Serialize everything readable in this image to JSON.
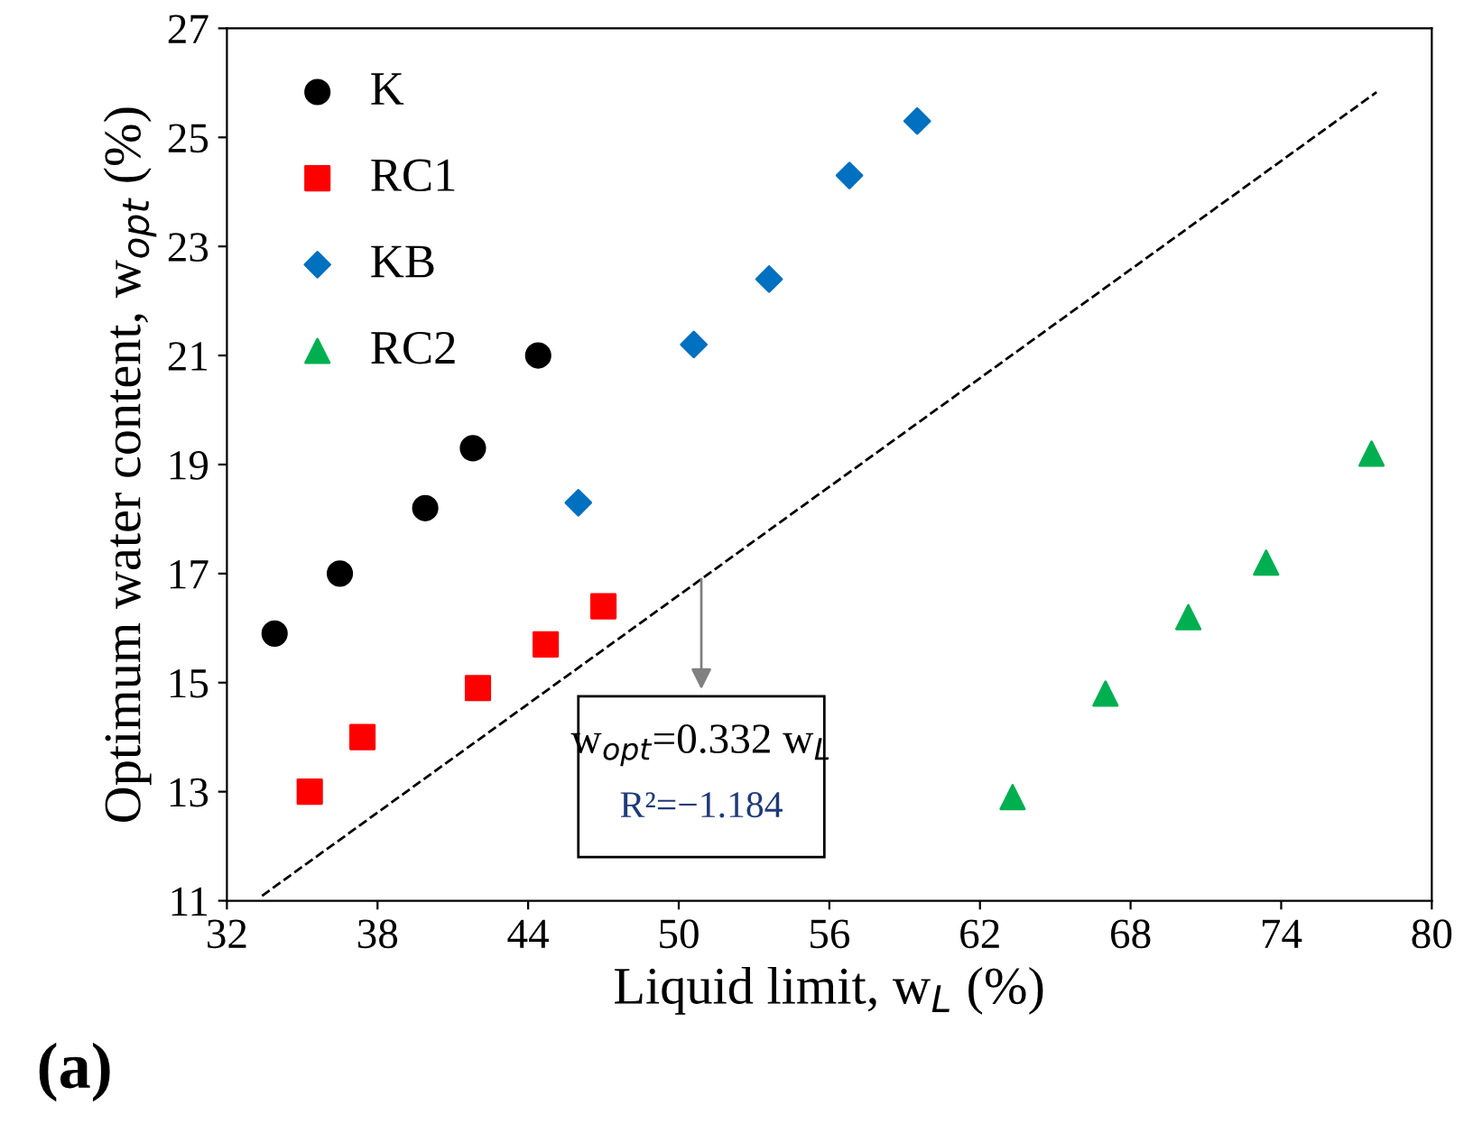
{
  "chart_data": {
    "type": "scatter",
    "xlabel": "Liquid limit, w$_{L}$ (%)",
    "ylabel": "Optimum water content, w$_{opt}$ (%)",
    "xlim": [
      32,
      80
    ],
    "ylim": [
      11,
      27
    ],
    "xticks": [
      32,
      38,
      44,
      50,
      56,
      62,
      68,
      74,
      80
    ],
    "yticks": [
      11,
      13,
      15,
      17,
      19,
      21,
      23,
      25,
      27
    ],
    "grid": false,
    "legend": "top left",
    "series": [
      {
        "name": "K",
        "color": "#000000",
        "marker": "circle",
        "x": [
          33.9,
          36.5,
          39.9,
          41.8,
          44.4
        ],
        "values": [
          15.9,
          17.0,
          18.2,
          19.3,
          21.0
        ]
      },
      {
        "name": "RC1",
        "color": "#ff0000",
        "marker": "square",
        "x": [
          35.3,
          37.4,
          42.0,
          44.7,
          47.0
        ],
        "values": [
          13.0,
          14.0,
          14.9,
          15.7,
          16.4
        ]
      },
      {
        "name": "KB",
        "color": "#0070c0",
        "marker": "diamond",
        "x": [
          46.0,
          50.6,
          53.6,
          56.8,
          59.5
        ],
        "values": [
          18.3,
          21.2,
          22.4,
          24.3,
          25.3
        ]
      },
      {
        "name": "RC2",
        "color": "#00b050",
        "marker": "triangle",
        "x": [
          63.3,
          67.0,
          70.3,
          73.4,
          77.6
        ],
        "values": [
          12.9,
          14.8,
          16.2,
          17.2,
          19.2
        ]
      },
      {
        "type": "line",
        "color": "#000000",
        "line_style": "dashed",
        "marker": "none",
        "x": [
          33.4,
          77.8
        ],
        "values": [
          11.09,
          25.83
        ]
      }
    ],
    "annotations": [
      {
        "text": "w$_{opt}$=0.332 w$_{L}$",
        "x": 50.9,
        "y": 16.9
      },
      "R²=−1.184",
      "(a)"
    ]
  }
}
